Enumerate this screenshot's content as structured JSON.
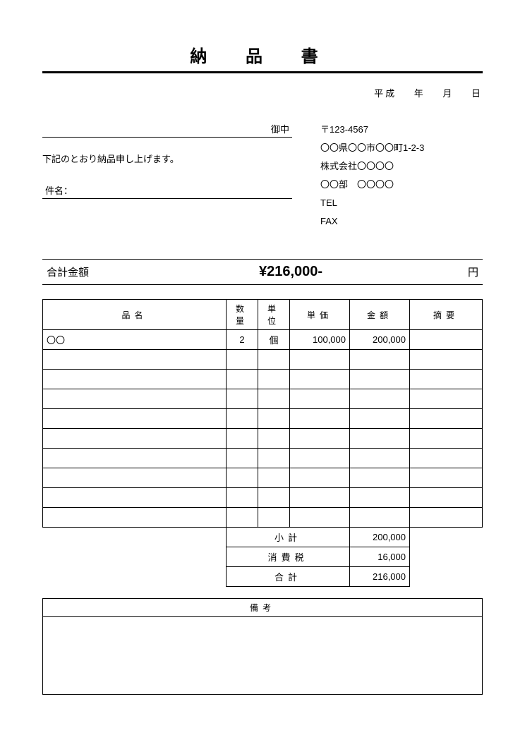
{
  "title": "納 品 書",
  "date": {
    "era": "平成",
    "year_label": "年",
    "month_label": "月",
    "day_label": "日"
  },
  "recipient": {
    "honorific": "御中"
  },
  "sender": {
    "postal": "〒123-4567",
    "address": "〇〇県〇〇市〇〇町1-2-3",
    "company": "株式会社〇〇〇〇",
    "dept": "〇〇部　〇〇〇〇",
    "tel_label": "TEL",
    "fax_label": "FAX"
  },
  "message": "下記のとおり納品申し上げます。",
  "subject_label": "件名：",
  "total": {
    "label": "合計金額",
    "value": "¥216,000-",
    "unit": "円"
  },
  "headers": {
    "name": "品名",
    "qty": "数量",
    "unit": "単位",
    "price": "単価",
    "amount": "金額",
    "note": "摘要"
  },
  "rows": [
    {
      "name": "〇〇",
      "qty": "2",
      "unit": "個",
      "price": "100,000",
      "amount": "200,000",
      "note": ""
    },
    {},
    {},
    {},
    {},
    {},
    {},
    {},
    {},
    {}
  ],
  "summary": {
    "subtotal_label": "小計",
    "subtotal": "200,000",
    "tax_label": "消費税",
    "tax": "16,000",
    "total_label": "合計",
    "total": "216,000"
  },
  "notes_label": "備考"
}
